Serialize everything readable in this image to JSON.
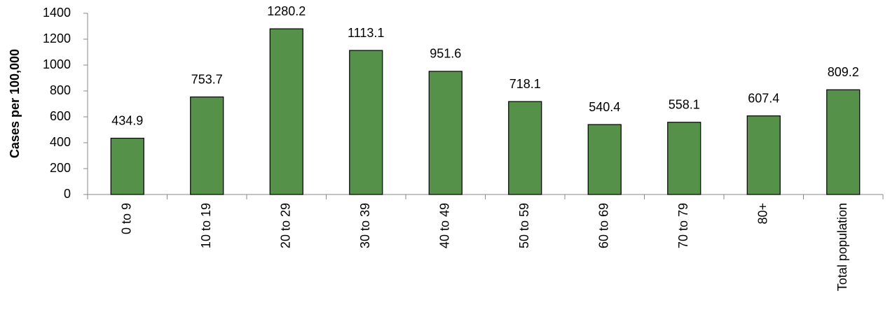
{
  "chart_data": {
    "type": "bar",
    "y_label": "Cases per 100,000",
    "categories": [
      "0 to 9",
      "10 to 19",
      "20 to 29",
      "30 to 39",
      "40 to 49",
      "50 to 59",
      "60 to 69",
      "70 to 79",
      "80+",
      "Total population"
    ],
    "values": [
      434.9,
      753.7,
      1280.2,
      1113.1,
      951.6,
      718.1,
      540.4,
      558.1,
      607.4,
      809.2
    ],
    "color": "#559149",
    "ylim": [
      0,
      1400
    ],
    "yticks": [
      0,
      200,
      400,
      600,
      800,
      1000,
      1200,
      1400
    ],
    "grid": false
  }
}
